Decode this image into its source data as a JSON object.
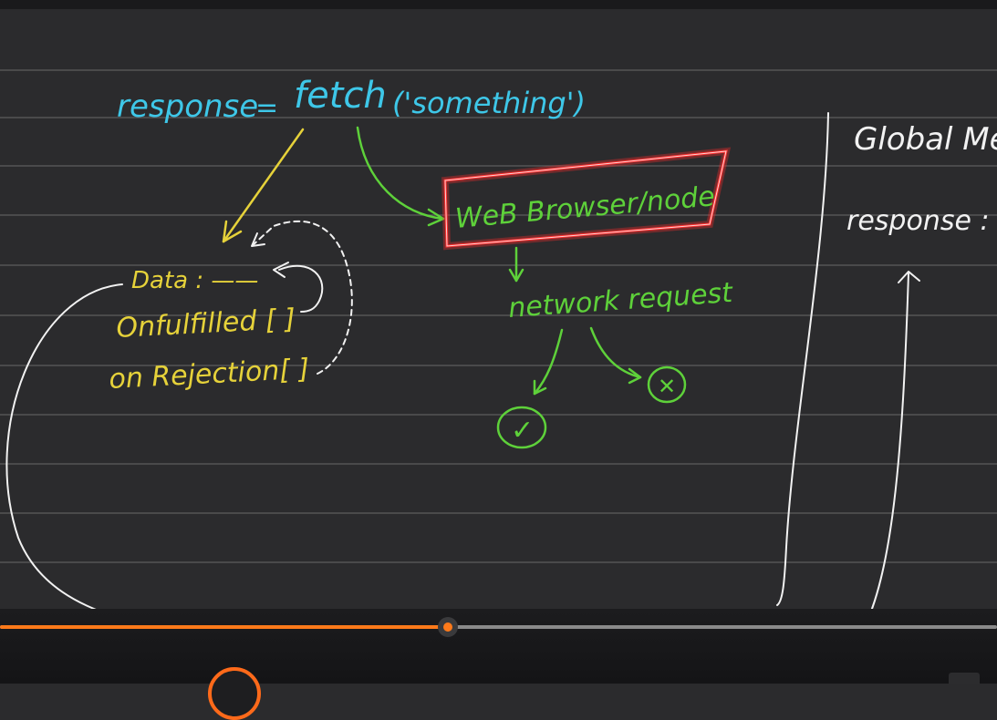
{
  "whiteboard": {
    "main_line": {
      "lhs": "response",
      "equals": "=",
      "fn": "fetch",
      "arg": "('something')"
    },
    "browser_box_label": "WeB Browser/node",
    "network_label": "network request",
    "data_label": "Data : ——",
    "onfulfilled_label": "Onfulfilled [ ]",
    "onrejection_label": "on Rejection[ ]",
    "global_memory_label": "Global Me",
    "global_response_label": "response :",
    "success_symbol": "✓",
    "failure_symbol": "✕"
  },
  "player": {
    "progress_fraction": 0.449,
    "accent_color": "#ff7a1a"
  },
  "colors": {
    "cyan": "#3ec7e8",
    "yellow": "#e6d23a",
    "green": "#5ed13a",
    "red": "#ff2a2a",
    "white": "#f2f2f2"
  }
}
